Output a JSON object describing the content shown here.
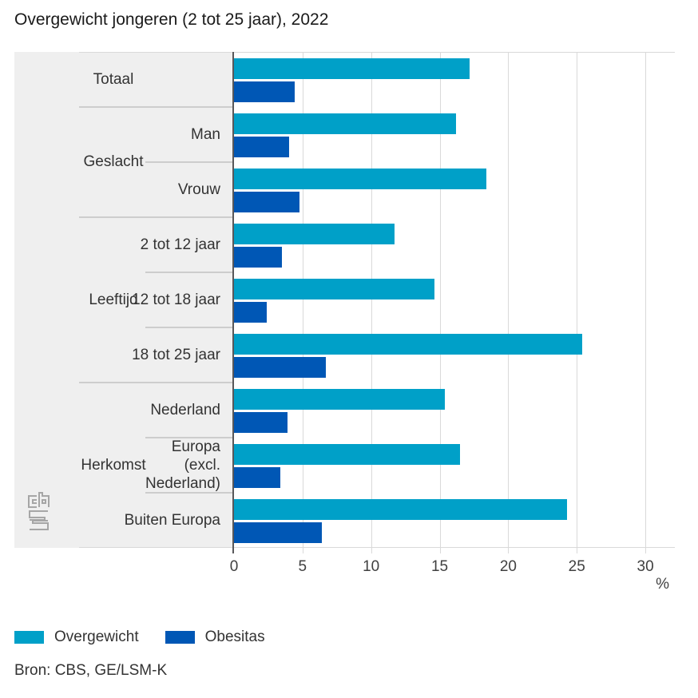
{
  "title": "Overgewicht jongeren (2 tot 25 jaar), 2022",
  "chart_data": {
    "type": "bar",
    "orientation": "horizontal",
    "title": "Overgewicht jongeren (2 tot 25 jaar), 2022",
    "xlabel": "%",
    "axis": {
      "unit_label": "%",
      "ticks": [
        0,
        5,
        10,
        15,
        20,
        25,
        30
      ],
      "max": 32.15,
      "grid": true
    },
    "series": [
      {
        "name": "Overgewicht",
        "color": "#00a0c8"
      },
      {
        "name": "Obesitas",
        "color": "#0057b5"
      }
    ],
    "groups": [
      {
        "label": "Totaal",
        "items": [
          {
            "label": "",
            "values": [
              17.2,
              4.4
            ]
          }
        ]
      },
      {
        "label": "Geslacht",
        "items": [
          {
            "label": "Man",
            "values": [
              16.2,
              4.0
            ]
          },
          {
            "label": "Vrouw",
            "values": [
              18.4,
              4.8
            ]
          }
        ]
      },
      {
        "label": "Leeftijd",
        "items": [
          {
            "label": "2 tot 12 jaar",
            "values": [
              11.7,
              3.5
            ]
          },
          {
            "label": "12 tot 18 jaar",
            "values": [
              14.6,
              2.4
            ]
          },
          {
            "label": "18 tot 25 jaar",
            "values": [
              25.4,
              6.7
            ]
          }
        ]
      },
      {
        "label": "Herkomst",
        "items": [
          {
            "label": "Nederland",
            "values": [
              15.4,
              3.9
            ]
          },
          {
            "label": "Europa\n(excl.\nNederland)",
            "values": [
              16.5,
              3.4
            ]
          },
          {
            "label": "Buiten Europa",
            "values": [
              24.3,
              6.4
            ]
          }
        ]
      }
    ],
    "legend_position": "bottom",
    "source": "Bron: CBS, GE/LSM-K"
  },
  "logo": {
    "name": "cbs-logo",
    "color": "#a6a6a6"
  }
}
